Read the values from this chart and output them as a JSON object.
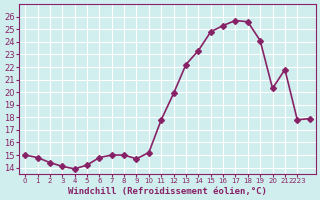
{
  "x": [
    0,
    1,
    2,
    3,
    4,
    5,
    6,
    7,
    8,
    9,
    10,
    11,
    12,
    13,
    14,
    15,
    16,
    17,
    18,
    19,
    20,
    21,
    22,
    23
  ],
  "y": [
    15.0,
    14.8,
    14.4,
    14.1,
    13.9,
    14.2,
    14.8,
    15.0,
    15.0,
    14.7,
    15.2,
    17.8,
    19.9,
    22.2,
    23.3,
    24.8,
    25.3,
    25.7,
    25.6,
    24.1,
    20.3,
    21.8,
    17.8,
    17.9
  ],
  "line_color": "#882266",
  "marker": "D",
  "marker_size": 3,
  "linewidth": 1.2,
  "bg_color": "#d0eeee",
  "grid_color": "#ffffff",
  "xlabel": "Windchill (Refroidissement éolien,°C)",
  "xlabel_color": "#882266",
  "tick_color": "#882266",
  "xlim": [
    -0.5,
    23.5
  ],
  "ylim": [
    13.5,
    27
  ],
  "yticks": [
    14,
    15,
    16,
    17,
    18,
    19,
    20,
    21,
    22,
    23,
    24,
    25,
    26
  ],
  "xtick_positions": [
    0,
    1,
    2,
    3,
    4,
    5,
    6,
    7,
    8,
    9,
    10,
    11,
    12,
    13,
    14,
    15,
    16,
    17,
    18,
    19,
    20,
    21,
    22
  ],
  "xtick_labels": [
    "0",
    "1",
    "2",
    "3",
    "4",
    "5",
    "6",
    "7",
    "8",
    "9",
    "10",
    "11",
    "12",
    "13",
    "14",
    "15",
    "16",
    "17",
    "18",
    "19",
    "20",
    "21",
    "2223"
  ],
  "title": ""
}
